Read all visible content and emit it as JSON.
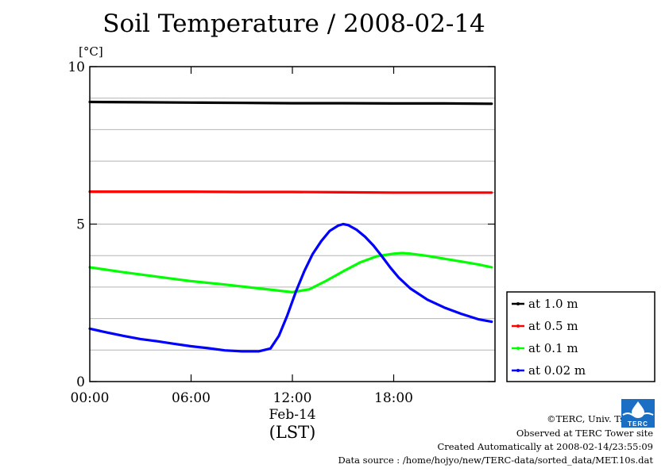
{
  "title": "Soil Temperature / 2008-02-14",
  "unit_label": "[°C]",
  "footer": {
    "copyright": "©TERC, Univ. Tsukuba",
    "site": "Observed at TERC Tower site",
    "created": "Created Automatically at 2008-02-14/23:55:09",
    "source": "Data source : /home/hojyo/new/TERC-data/sorted_data/MET.10s.dat",
    "logo_text": "TERC"
  },
  "chart_data": {
    "type": "line",
    "title": "Soil Temperature / 2008-02-14",
    "ylabel": "[°C]",
    "xlabel": "(LST)",
    "x_date_label": "Feb-14",
    "x_tick_labels": [
      "00:00",
      "06:00",
      "12:00",
      "18:00"
    ],
    "x_ticks_hours": [
      0,
      6,
      12,
      18
    ],
    "xlim_hours": [
      0,
      24
    ],
    "ylim": [
      0,
      10
    ],
    "y_tick_labels": [
      "0",
      "5",
      "10"
    ],
    "y_ticks": [
      0,
      5,
      10
    ],
    "y_minor_grid": [
      1,
      2,
      3,
      4,
      6,
      7,
      8,
      9
    ],
    "grid": true,
    "legend_position": "bottom-right, outside plot",
    "x_unit": "hours since 00:00 LST",
    "series": [
      {
        "name": "at 1.0 m",
        "color": "#000000",
        "x": [
          0,
          3,
          6,
          9,
          12,
          15,
          18,
          21,
          23.8
        ],
        "y": [
          8.88,
          8.87,
          8.86,
          8.85,
          8.84,
          8.84,
          8.83,
          8.83,
          8.82
        ]
      },
      {
        "name": "at 0.5 m",
        "color": "#ff0000",
        "x": [
          0,
          3,
          6,
          9,
          12,
          15,
          18,
          21,
          23.8
        ],
        "y": [
          6.03,
          6.03,
          6.03,
          6.02,
          6.02,
          6.01,
          6.0,
          6.0,
          6.0
        ]
      },
      {
        "name": "at 0.1 m",
        "color": "#00ff00",
        "x": [
          0,
          2,
          4,
          6,
          8,
          10,
          11,
          12,
          13,
          14,
          15,
          16,
          17,
          18,
          18.5,
          19,
          20,
          21,
          22,
          23,
          23.8
        ],
        "y": [
          3.63,
          3.47,
          3.33,
          3.19,
          3.08,
          2.96,
          2.9,
          2.84,
          2.93,
          3.2,
          3.5,
          3.78,
          3.98,
          4.06,
          4.08,
          4.06,
          3.99,
          3.9,
          3.81,
          3.72,
          3.63
        ]
      },
      {
        "name": "at 0.02 m",
        "color": "#0000ff",
        "x": [
          0,
          1,
          2,
          3,
          4,
          5,
          6,
          7,
          8,
          9,
          10,
          10.7,
          11.2,
          11.7,
          12.2,
          12.7,
          13.2,
          13.7,
          14.2,
          14.7,
          15.0,
          15.3,
          15.8,
          16.3,
          16.8,
          17.3,
          17.8,
          18.3,
          19,
          20,
          21,
          22,
          23,
          23.8
        ],
        "y": [
          1.68,
          1.56,
          1.45,
          1.35,
          1.28,
          1.2,
          1.12,
          1.06,
          0.99,
          0.96,
          0.96,
          1.05,
          1.45,
          2.1,
          2.85,
          3.5,
          4.05,
          4.45,
          4.78,
          4.95,
          5.0,
          4.97,
          4.82,
          4.6,
          4.32,
          3.98,
          3.62,
          3.3,
          2.95,
          2.6,
          2.35,
          2.15,
          1.98,
          1.9
        ]
      }
    ]
  }
}
